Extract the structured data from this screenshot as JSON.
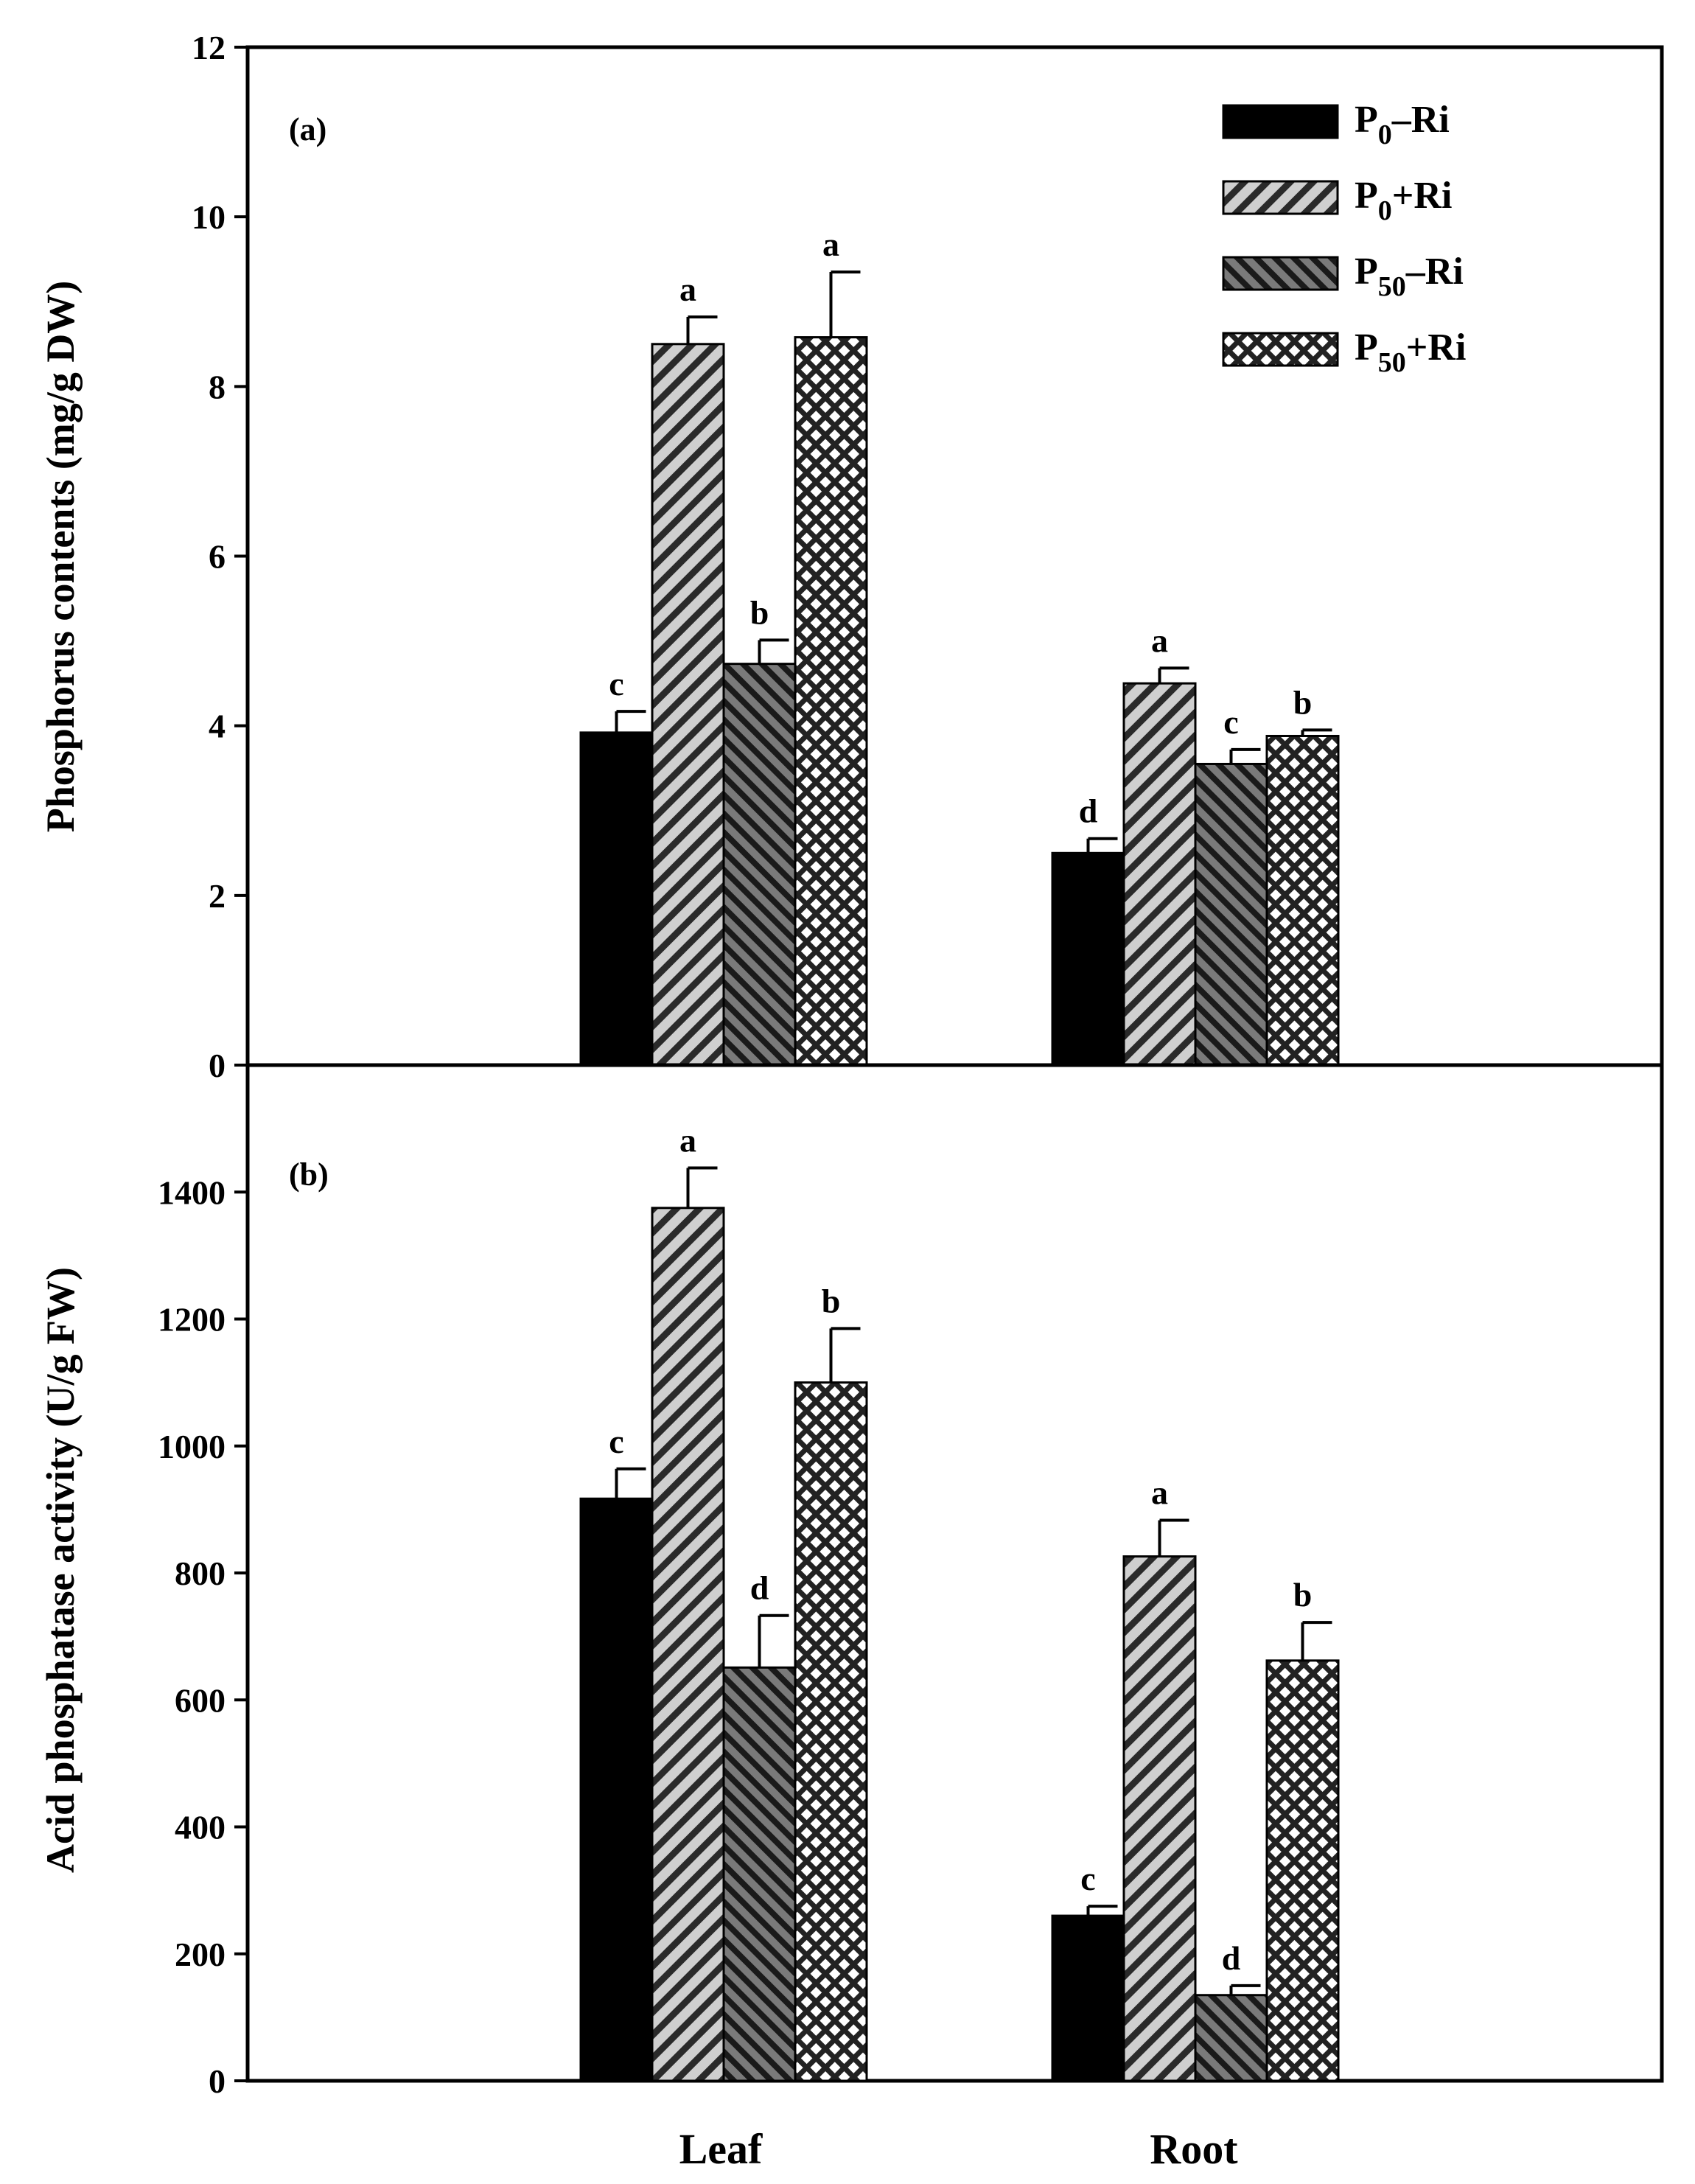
{
  "chart_data": [
    {
      "type": "bar",
      "panel": "(a)",
      "ylabel": "Phosphorus contents (mg/g DW)",
      "ylim": [
        0,
        12
      ],
      "yticks": [
        "0",
        "2",
        "4",
        "6",
        "8",
        "10",
        "12"
      ],
      "categories": [
        "Leaf",
        "Root"
      ],
      "series": [
        {
          "name": "P0–Ri",
          "base": "P",
          "sub": "0",
          "suffix": "–Ri",
          "pattern": "solid",
          "values": [
            3.92,
            2.5
          ],
          "errors": [
            0.25,
            0.17
          ],
          "letters": [
            "c",
            "d"
          ]
        },
        {
          "name": "P0+Ri",
          "base": "P",
          "sub": "0",
          "suffix": "+Ri",
          "pattern": "hatch-fwd",
          "values": [
            8.5,
            4.5
          ],
          "errors": [
            0.32,
            0.18
          ],
          "letters": [
            "a",
            "a"
          ]
        },
        {
          "name": "P50–Ri",
          "base": "P",
          "sub": "50",
          "suffix": "–Ri",
          "pattern": "hatch-back",
          "values": [
            4.73,
            3.55
          ],
          "errors": [
            0.28,
            0.17
          ],
          "letters": [
            "b",
            "c"
          ]
        },
        {
          "name": "P50+Ri",
          "base": "P",
          "sub": "50",
          "suffix": "+Ri",
          "pattern": "crosshatch",
          "values": [
            8.58,
            3.88
          ],
          "errors": [
            0.77,
            0.07
          ],
          "letters": [
            "a",
            "b"
          ]
        }
      ]
    },
    {
      "type": "bar",
      "panel": "(b)",
      "ylabel": "Acid phosphatase activity (U/g FW)",
      "ylim": [
        0,
        1600
      ],
      "yticks": [
        "0",
        "200",
        "400",
        "600",
        "800",
        "1000",
        "1200",
        "1400"
      ],
      "categories": [
        "Leaf",
        "Root"
      ],
      "series": [
        {
          "name": "P0–Ri",
          "pattern": "solid",
          "values": [
            917,
            260
          ],
          "errors": [
            47,
            15
          ],
          "letters": [
            "c",
            "c"
          ]
        },
        {
          "name": "P0+Ri",
          "pattern": "hatch-fwd",
          "values": [
            1375,
            826
          ],
          "errors": [
            63,
            57
          ],
          "letters": [
            "a",
            "a"
          ]
        },
        {
          "name": "P50–Ri",
          "pattern": "hatch-back",
          "values": [
            651,
            135
          ],
          "errors": [
            82,
            15
          ],
          "letters": [
            "d",
            "d"
          ]
        },
        {
          "name": "P50+Ri",
          "pattern": "crosshatch",
          "values": [
            1100,
            662
          ],
          "errors": [
            85,
            60
          ],
          "letters": [
            "b",
            "b"
          ]
        }
      ]
    }
  ],
  "xlabels": [
    "Leaf",
    "Root"
  ],
  "legend": {
    "position": "top-right of panel (a)",
    "items": [
      {
        "base": "P",
        "sub": "0",
        "suffix": "–Ri",
        "pattern": "solid"
      },
      {
        "base": "P",
        "sub": "0",
        "suffix": "+Ri",
        "pattern": "hatch-fwd"
      },
      {
        "base": "P",
        "sub": "50",
        "suffix": "–Ri",
        "pattern": "hatch-back"
      },
      {
        "base": "P",
        "sub": "50",
        "suffix": "+Ri",
        "pattern": "crosshatch"
      }
    ]
  },
  "colors": {
    "ink": "#000000",
    "background": "#ffffff",
    "light_fill": "#c8c8c8",
    "dark_fill": "#595959"
  }
}
